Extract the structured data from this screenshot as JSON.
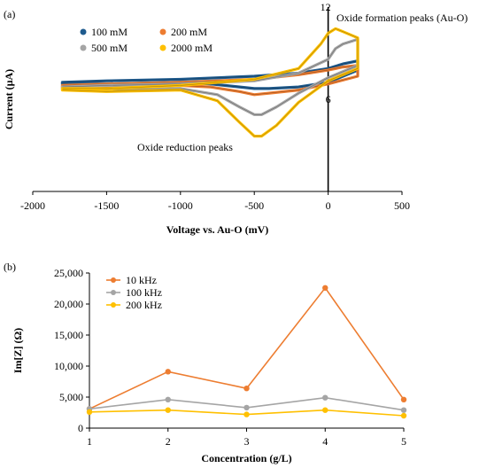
{
  "chart_data": [
    {
      "panel_label": "(a)",
      "type": "line",
      "title": "",
      "xlabel": "Voltage vs. Au-O (mV)",
      "ylabel": "Current (µA)",
      "xlim": [
        -2000,
        500
      ],
      "ylim": [
        0,
        12
      ],
      "xticks": [
        -2000,
        -1500,
        -1000,
        -500,
        0,
        500
      ],
      "yticks": [
        6,
        12
      ],
      "grid": false,
      "legend": "top-left",
      "annotations": [
        "Oxide formation peaks (Au-O)",
        "Oxide reduction peaks"
      ],
      "series": [
        {
          "name": "100 mM",
          "color": "#1f5b8e",
          "x": [
            -1800,
            -1500,
            -1000,
            -500,
            -200,
            0,
            100,
            200,
            200,
            0,
            -200,
            -400,
            -500,
            -600,
            -800,
            -1000,
            -1500,
            -1800
          ],
          "y": [
            7.1,
            7.2,
            7.3,
            7.5,
            7.7,
            8.0,
            8.3,
            8.5,
            7.9,
            7.1,
            6.8,
            6.7,
            6.7,
            6.8,
            7.0,
            7.1,
            7.0,
            7.0
          ]
        },
        {
          "name": "200 mM",
          "color": "#ed7d31",
          "x": [
            -1800,
            -1500,
            -1000,
            -500,
            -200,
            0,
            100,
            200,
            200,
            0,
            -200,
            -400,
            -500,
            -600,
            -800,
            -1000,
            -1500,
            -1800
          ],
          "y": [
            6.9,
            7.0,
            7.1,
            7.3,
            7.6,
            7.9,
            8.1,
            8.2,
            7.5,
            7.0,
            6.6,
            6.4,
            6.3,
            6.5,
            6.8,
            6.9,
            6.8,
            6.8
          ]
        },
        {
          "name": "500 mM",
          "color": "#a5a5a5",
          "x": [
            -1800,
            -1500,
            -1000,
            -500,
            -200,
            0,
            50,
            100,
            200,
            200,
            0,
            -200,
            -350,
            -450,
            -500,
            -600,
            -750,
            -1000,
            -1500,
            -1800
          ],
          "y": [
            6.8,
            6.9,
            7.0,
            7.2,
            7.7,
            8.6,
            9.3,
            9.6,
            9.9,
            8.2,
            7.4,
            6.4,
            5.5,
            5.0,
            5.0,
            5.5,
            6.3,
            6.7,
            6.6,
            6.7
          ]
        },
        {
          "name": "2000 mM",
          "color": "#ffc000",
          "x": [
            -1800,
            -1500,
            -1000,
            -500,
            -200,
            -50,
            0,
            50,
            100,
            200,
            200,
            0,
            -200,
            -350,
            -450,
            -500,
            -600,
            -750,
            -1000,
            -1500,
            -1800
          ],
          "y": [
            6.7,
            6.7,
            6.9,
            7.3,
            8.0,
            9.6,
            10.3,
            10.6,
            10.4,
            10.0,
            8.0,
            7.2,
            5.8,
            4.3,
            3.6,
            3.6,
            4.5,
            5.9,
            6.6,
            6.5,
            6.6
          ]
        }
      ]
    },
    {
      "panel_label": "(b)",
      "type": "line",
      "title": "",
      "xlabel": "Concentration (g/L)",
      "ylabel": "Im[Z] (Ω)",
      "xlim": [
        1,
        5
      ],
      "ylim": [
        0,
        25000
      ],
      "x": [
        1,
        2,
        3,
        4,
        5
      ],
      "yticks": [
        "0",
        "5,000",
        "10,000",
        "15,000",
        "20,000",
        "25,000"
      ],
      "grid": false,
      "legend": "top-left",
      "series": [
        {
          "name": "10 kHz",
          "color": "#ed7d31",
          "values": [
            3100,
            9100,
            6400,
            22600,
            4600
          ]
        },
        {
          "name": "100 kHz",
          "color": "#a5a5a5",
          "values": [
            3100,
            4600,
            3300,
            4900,
            2900
          ]
        },
        {
          "name": "200 kHz",
          "color": "#ffc000",
          "values": [
            2600,
            2900,
            2200,
            2900,
            2000
          ]
        }
      ]
    }
  ]
}
